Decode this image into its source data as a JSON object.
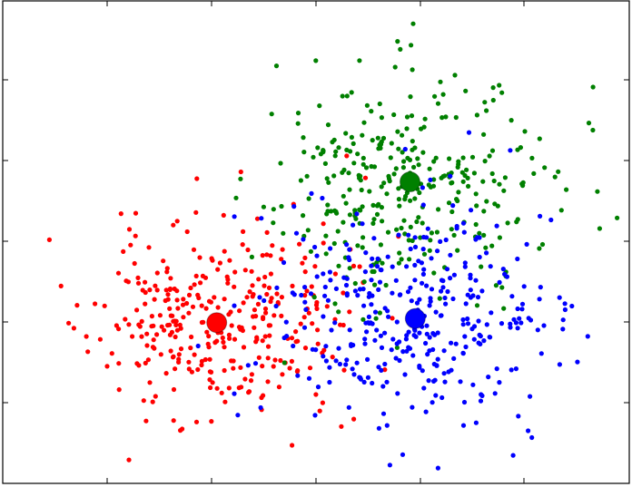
{
  "chart_data": {
    "type": "scatter",
    "title": "",
    "xlabel": "",
    "ylabel": "",
    "xlim": [
      0,
      12
    ],
    "ylim": [
      0,
      12
    ],
    "grid": false,
    "legend": "none",
    "tick_labels_visible": false,
    "series": [
      {
        "color": "#ff0000",
        "center": {
          "x": 4.1,
          "y": 4.0
        },
        "spread": 1.2,
        "count": 340,
        "seed": 11
      },
      {
        "color": "#008000",
        "center": {
          "x": 7.8,
          "y": 7.5
        },
        "spread": 1.35,
        "count": 330,
        "seed": 29
      },
      {
        "color": "#0000ff",
        "center": {
          "x": 7.9,
          "y": 4.1
        },
        "spread": 1.4,
        "count": 360,
        "seed": 47
      }
    ]
  }
}
